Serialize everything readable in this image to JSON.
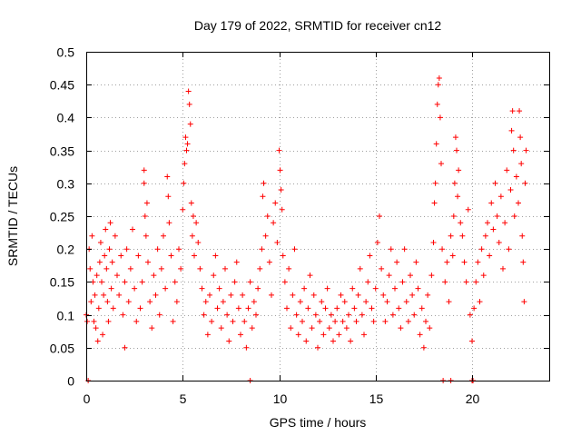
{
  "chart_data": {
    "type": "scatter",
    "title": "Day 179 of 2022, SRMTID for receiver cn12",
    "xlabel": "GPS time / hours",
    "ylabel": "SRMTID / TECUs",
    "xlim": [
      0,
      24
    ],
    "ylim": [
      0,
      0.5
    ],
    "xticks": [
      0,
      5,
      10,
      15,
      20
    ],
    "xtick_labels": [
      "0",
      "5",
      "10",
      "15",
      "20"
    ],
    "yticks": [
      0,
      0.05,
      0.1,
      0.15,
      0.2,
      0.25,
      0.3,
      0.35,
      0.4,
      0.45,
      0.5
    ],
    "ytick_labels": [
      "0",
      "0.05",
      "0.1",
      "0.15",
      "0.2",
      "0.25",
      "0.3",
      "0.35",
      "0.4",
      "0.45",
      "0.5"
    ],
    "grid": true,
    "marker": "+",
    "series": [
      {
        "name": "SRMTID",
        "color": "#ff0000",
        "points": [
          [
            0.0,
            0.1
          ],
          [
            0.05,
            0.09
          ],
          [
            0.1,
            0.0
          ],
          [
            0.15,
            0.2
          ],
          [
            0.2,
            0.17
          ],
          [
            0.25,
            0.12
          ],
          [
            0.3,
            0.22
          ],
          [
            0.35,
            0.15
          ],
          [
            0.4,
            0.09
          ],
          [
            0.45,
            0.13
          ],
          [
            0.5,
            0.08
          ],
          [
            0.55,
            0.16
          ],
          [
            0.6,
            0.06
          ],
          [
            0.65,
            0.11
          ],
          [
            0.7,
            0.18
          ],
          [
            0.75,
            0.21
          ],
          [
            0.8,
            0.15
          ],
          [
            0.85,
            0.07
          ],
          [
            0.9,
            0.13
          ],
          [
            0.95,
            0.19
          ],
          [
            1.0,
            0.23
          ],
          [
            1.05,
            0.17
          ],
          [
            1.1,
            0.12
          ],
          [
            1.15,
            0.09
          ],
          [
            1.2,
            0.2
          ],
          [
            1.25,
            0.24
          ],
          [
            1.3,
            0.14
          ],
          [
            1.35,
            0.18
          ],
          [
            1.4,
            0.11
          ],
          [
            1.5,
            0.22
          ],
          [
            1.6,
            0.16
          ],
          [
            1.7,
            0.13
          ],
          [
            1.8,
            0.19
          ],
          [
            1.9,
            0.1
          ],
          [
            2.0,
            0.05
          ],
          [
            2.0,
            0.15
          ],
          [
            2.1,
            0.2
          ],
          [
            2.2,
            0.12
          ],
          [
            2.3,
            0.17
          ],
          [
            2.4,
            0.23
          ],
          [
            2.5,
            0.14
          ],
          [
            2.6,
            0.09
          ],
          [
            2.7,
            0.19
          ],
          [
            2.8,
            0.11
          ],
          [
            2.9,
            0.15
          ],
          [
            3.0,
            0.32
          ],
          [
            3.0,
            0.3
          ],
          [
            3.05,
            0.25
          ],
          [
            3.1,
            0.22
          ],
          [
            3.15,
            0.27
          ],
          [
            3.2,
            0.18
          ],
          [
            3.3,
            0.12
          ],
          [
            3.4,
            0.08
          ],
          [
            3.5,
            0.16
          ],
          [
            3.6,
            0.13
          ],
          [
            3.7,
            0.2
          ],
          [
            3.8,
            0.1
          ],
          [
            3.9,
            0.17
          ],
          [
            4.0,
            0.22
          ],
          [
            4.1,
            0.14
          ],
          [
            4.2,
            0.31
          ],
          [
            4.25,
            0.28
          ],
          [
            4.3,
            0.24
          ],
          [
            4.4,
            0.19
          ],
          [
            4.5,
            0.09
          ],
          [
            4.6,
            0.15
          ],
          [
            4.7,
            0.12
          ],
          [
            4.8,
            0.2
          ],
          [
            4.9,
            0.17
          ],
          [
            5.0,
            0.26
          ],
          [
            5.05,
            0.3
          ],
          [
            5.1,
            0.33
          ],
          [
            5.15,
            0.37
          ],
          [
            5.2,
            0.35
          ],
          [
            5.25,
            0.36
          ],
          [
            5.3,
            0.44
          ],
          [
            5.35,
            0.42
          ],
          [
            5.4,
            0.39
          ],
          [
            5.45,
            0.27
          ],
          [
            5.5,
            0.22
          ],
          [
            5.55,
            0.25
          ],
          [
            5.6,
            0.19
          ],
          [
            5.7,
            0.24
          ],
          [
            5.8,
            0.21
          ],
          [
            5.9,
            0.17
          ],
          [
            6.0,
            0.14
          ],
          [
            6.1,
            0.1
          ],
          [
            6.2,
            0.12
          ],
          [
            6.3,
            0.07
          ],
          [
            6.4,
            0.13
          ],
          [
            6.5,
            0.09
          ],
          [
            6.6,
            0.16
          ],
          [
            6.7,
            0.19
          ],
          [
            6.8,
            0.11
          ],
          [
            6.9,
            0.14
          ],
          [
            7.0,
            0.08
          ],
          [
            7.1,
            0.12
          ],
          [
            7.2,
            0.17
          ],
          [
            7.3,
            0.1
          ],
          [
            7.4,
            0.06
          ],
          [
            7.5,
            0.13
          ],
          [
            7.6,
            0.09
          ],
          [
            7.7,
            0.15
          ],
          [
            7.8,
            0.18
          ],
          [
            7.9,
            0.11
          ],
          [
            8.0,
            0.07
          ],
          [
            8.1,
            0.13
          ],
          [
            8.2,
            0.09
          ],
          [
            8.3,
            0.05
          ],
          [
            8.4,
            0.11
          ],
          [
            8.5,
            0.0
          ],
          [
            8.5,
            0.15
          ],
          [
            8.6,
            0.08
          ],
          [
            8.7,
            0.12
          ],
          [
            8.8,
            0.1
          ],
          [
            8.9,
            0.14
          ],
          [
            9.0,
            0.17
          ],
          [
            9.1,
            0.2
          ],
          [
            9.15,
            0.28
          ],
          [
            9.2,
            0.3
          ],
          [
            9.3,
            0.22
          ],
          [
            9.4,
            0.25
          ],
          [
            9.5,
            0.18
          ],
          [
            9.6,
            0.13
          ],
          [
            9.7,
            0.24
          ],
          [
            9.8,
            0.27
          ],
          [
            9.9,
            0.21
          ],
          [
            10.0,
            0.35
          ],
          [
            10.05,
            0.32
          ],
          [
            10.1,
            0.29
          ],
          [
            10.15,
            0.26
          ],
          [
            10.2,
            0.19
          ],
          [
            10.3,
            0.15
          ],
          [
            10.4,
            0.11
          ],
          [
            10.5,
            0.17
          ],
          [
            10.6,
            0.08
          ],
          [
            10.7,
            0.13
          ],
          [
            10.8,
            0.2
          ],
          [
            10.9,
            0.1
          ],
          [
            11.0,
            0.07
          ],
          [
            11.1,
            0.12
          ],
          [
            11.2,
            0.09
          ],
          [
            11.3,
            0.14
          ],
          [
            11.4,
            0.06
          ],
          [
            11.5,
            0.11
          ],
          [
            11.6,
            0.16
          ],
          [
            11.7,
            0.08
          ],
          [
            11.8,
            0.13
          ],
          [
            11.9,
            0.1
          ],
          [
            12.0,
            0.05
          ],
          [
            12.1,
            0.09
          ],
          [
            12.2,
            0.12
          ],
          [
            12.3,
            0.07
          ],
          [
            12.4,
            0.11
          ],
          [
            12.5,
            0.14
          ],
          [
            12.6,
            0.08
          ],
          [
            12.7,
            0.1
          ],
          [
            12.8,
            0.06
          ],
          [
            12.9,
            0.09
          ],
          [
            13.0,
            0.11
          ],
          [
            13.1,
            0.07
          ],
          [
            13.2,
            0.13
          ],
          [
            13.3,
            0.09
          ],
          [
            13.4,
            0.12
          ],
          [
            13.5,
            0.08
          ],
          [
            13.6,
            0.1
          ],
          [
            13.7,
            0.06
          ],
          [
            13.8,
            0.14
          ],
          [
            13.9,
            0.11
          ],
          [
            14.0,
            0.09
          ],
          [
            14.1,
            0.13
          ],
          [
            14.2,
            0.17
          ],
          [
            14.3,
            0.1
          ],
          [
            14.4,
            0.07
          ],
          [
            14.5,
            0.12
          ],
          [
            14.6,
            0.15
          ],
          [
            14.7,
            0.19
          ],
          [
            14.8,
            0.11
          ],
          [
            14.9,
            0.09
          ],
          [
            15.0,
            0.14
          ],
          [
            15.1,
            0.21
          ],
          [
            15.2,
            0.25
          ],
          [
            15.3,
            0.17
          ],
          [
            15.4,
            0.13
          ],
          [
            15.5,
            0.09
          ],
          [
            15.6,
            0.12
          ],
          [
            15.7,
            0.16
          ],
          [
            15.8,
            0.2
          ],
          [
            15.9,
            0.1
          ],
          [
            16.0,
            0.14
          ],
          [
            16.1,
            0.18
          ],
          [
            16.2,
            0.11
          ],
          [
            16.3,
            0.08
          ],
          [
            16.4,
            0.15
          ],
          [
            16.5,
            0.2
          ],
          [
            16.6,
            0.12
          ],
          [
            16.7,
            0.09
          ],
          [
            16.8,
            0.16
          ],
          [
            16.9,
            0.13
          ],
          [
            17.0,
            0.1
          ],
          [
            17.1,
            0.18
          ],
          [
            17.2,
            0.14
          ],
          [
            17.3,
            0.07
          ],
          [
            17.4,
            0.11
          ],
          [
            17.5,
            0.05
          ],
          [
            17.6,
            0.09
          ],
          [
            17.7,
            0.13
          ],
          [
            17.8,
            0.08
          ],
          [
            17.9,
            0.16
          ],
          [
            18.0,
            0.21
          ],
          [
            18.05,
            0.27
          ],
          [
            18.1,
            0.3
          ],
          [
            18.15,
            0.36
          ],
          [
            18.2,
            0.42
          ],
          [
            18.25,
            0.45
          ],
          [
            18.3,
            0.46
          ],
          [
            18.35,
            0.4
          ],
          [
            18.4,
            0.33
          ],
          [
            18.45,
            0.2
          ],
          [
            18.5,
            0.0
          ],
          [
            18.6,
            0.15
          ],
          [
            18.7,
            0.18
          ],
          [
            18.8,
            0.12
          ],
          [
            18.9,
            0.0
          ],
          [
            18.9,
            0.22
          ],
          [
            19.0,
            0.19
          ],
          [
            19.05,
            0.25
          ],
          [
            19.1,
            0.3
          ],
          [
            19.15,
            0.37
          ],
          [
            19.2,
            0.35
          ],
          [
            19.25,
            0.28
          ],
          [
            19.3,
            0.32
          ],
          [
            19.4,
            0.24
          ],
          [
            19.5,
            0.22
          ],
          [
            19.6,
            0.18
          ],
          [
            19.7,
            0.15
          ],
          [
            19.8,
            0.26
          ],
          [
            19.9,
            0.1
          ],
          [
            20.0,
            0.0
          ],
          [
            20.0,
            0.06
          ],
          [
            20.05,
            0.0
          ],
          [
            20.1,
            0.11
          ],
          [
            20.2,
            0.15
          ],
          [
            20.3,
            0.18
          ],
          [
            20.4,
            0.12
          ],
          [
            20.5,
            0.2
          ],
          [
            20.6,
            0.16
          ],
          [
            20.7,
            0.22
          ],
          [
            20.8,
            0.24
          ],
          [
            20.9,
            0.19
          ],
          [
            21.0,
            0.27
          ],
          [
            21.1,
            0.23
          ],
          [
            21.2,
            0.3
          ],
          [
            21.3,
            0.25
          ],
          [
            21.4,
            0.21
          ],
          [
            21.5,
            0.28
          ],
          [
            21.6,
            0.17
          ],
          [
            21.7,
            0.24
          ],
          [
            21.8,
            0.32
          ],
          [
            21.9,
            0.2
          ],
          [
            22.0,
            0.29
          ],
          [
            22.05,
            0.38
          ],
          [
            22.1,
            0.41
          ],
          [
            22.15,
            0.35
          ],
          [
            22.2,
            0.25
          ],
          [
            22.3,
            0.31
          ],
          [
            22.4,
            0.27
          ],
          [
            22.45,
            0.41
          ],
          [
            22.5,
            0.37
          ],
          [
            22.55,
            0.33
          ],
          [
            22.6,
            0.22
          ],
          [
            22.65,
            0.18
          ],
          [
            22.7,
            0.12
          ],
          [
            22.75,
            0.3
          ],
          [
            22.8,
            0.35
          ]
        ]
      }
    ]
  }
}
